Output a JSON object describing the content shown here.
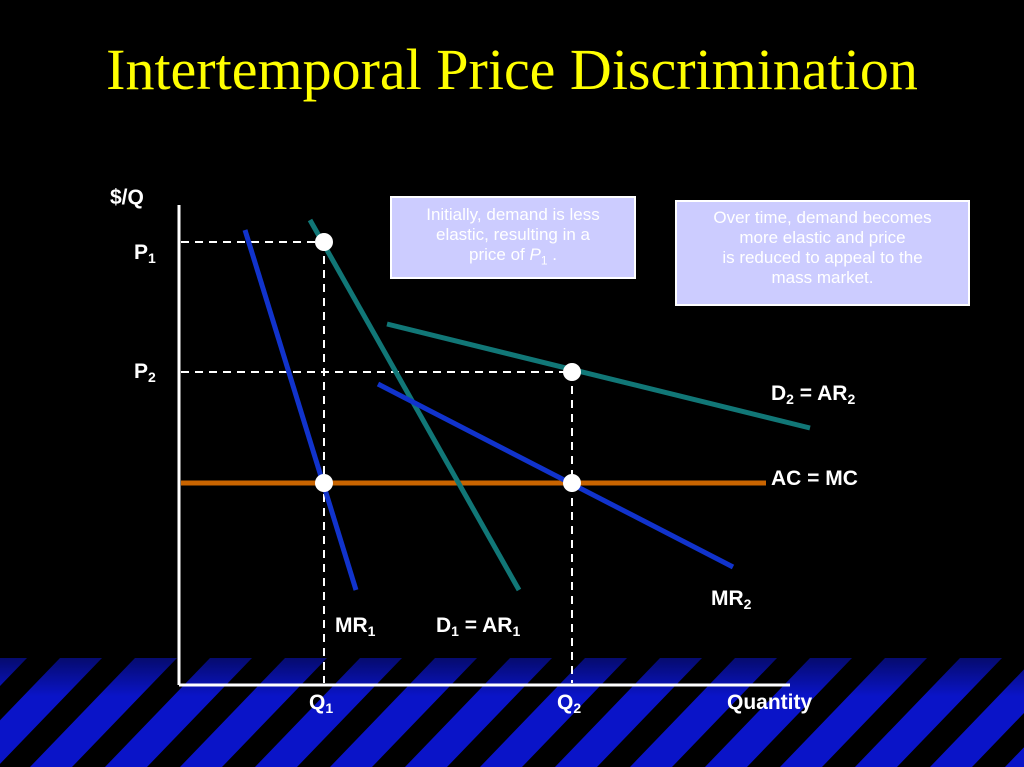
{
  "slide": {
    "title": "Intertemporal Price Discrimination",
    "colors": {
      "background": "#000000",
      "title": "#ffff00",
      "stripe": "#0a14c8",
      "axis": "#ffffff",
      "demand": "#117777",
      "marginal_revenue": "#1133cc",
      "cost": "#c86400",
      "note_fill": "#ccccff"
    }
  },
  "diagram": {
    "y_axis_label": "$/Q",
    "x_axis_label": "Quantity",
    "price_labels": [
      {
        "main": "P",
        "sub": "1"
      },
      {
        "main": "P",
        "sub": "2"
      }
    ],
    "quantity_labels": [
      {
        "main": "Q",
        "sub": "1"
      },
      {
        "main": "Q",
        "sub": "2"
      }
    ],
    "curve_labels": {
      "mr1": {
        "main": "MR",
        "sub": "1"
      },
      "d1": {
        "main": "D",
        "sub": "1",
        "eq": " = AR",
        "sub2": "1"
      },
      "d2": {
        "main": "D",
        "sub": "2",
        "eq": " = AR",
        "sub2": "2"
      },
      "mr2": {
        "main": "MR",
        "sub": "2"
      },
      "ac_mc": {
        "main": "AC = MC"
      }
    },
    "notes": {
      "left": {
        "line1": "Initially, demand is less",
        "line2": "elastic, resulting in a",
        "line3_pre": "price of ",
        "line3_main": "P",
        "line3_sub": "1",
        "line3_post": " ."
      },
      "right": {
        "line1": "Over time, demand becomes",
        "line2": "more elastic and price",
        "line3": "is reduced to appeal to the",
        "line4": "mass market."
      }
    }
  }
}
